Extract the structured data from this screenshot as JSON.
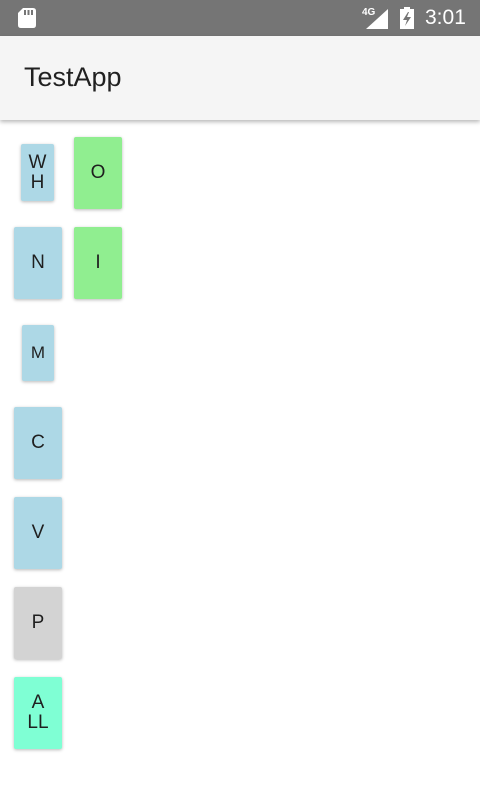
{
  "status_bar": {
    "time": "3:01",
    "network": "4G",
    "icons": [
      "sd-card-icon",
      "signal-icon",
      "battery-charging-icon"
    ]
  },
  "app_bar": {
    "title": "TestApp"
  },
  "tiles": {
    "wh": {
      "label": "W\nH",
      "color": "#add8e6"
    },
    "o": {
      "label": "O",
      "color": "#90ee90"
    },
    "n": {
      "label": "N",
      "color": "#add8e6"
    },
    "i": {
      "label": "I",
      "color": "#90ee90"
    },
    "m": {
      "label": "M",
      "color": "#add8e6"
    },
    "c": {
      "label": "C",
      "color": "#add8e6"
    },
    "v": {
      "label": "V",
      "color": "#add8e6"
    },
    "p": {
      "label": "P",
      "color": "#d3d3d3"
    },
    "all": {
      "label": "A\nLL",
      "color": "#7fffd4"
    }
  }
}
